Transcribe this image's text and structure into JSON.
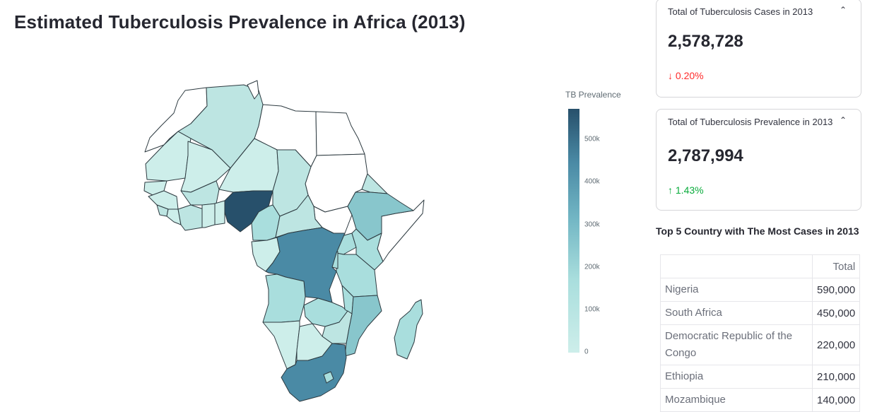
{
  "page": {
    "title": "Estimated Tuberculosis Prevalence in Africa (2013)"
  },
  "map": {
    "legend": {
      "title": "TB Prevalence",
      "ticks": [
        "0",
        "100k",
        "200k",
        "300k",
        "400k",
        "500k"
      ]
    },
    "colors": {
      "no_data": "#ffffff",
      "very_low": "#cdeeea",
      "low": "#bde5e2",
      "low_mid": "#a9dedd",
      "mid": "#88c6cc",
      "mid_high": "#5f9fb6",
      "high": "#4a8aa5",
      "max": "#27506b"
    }
  },
  "metrics": [
    {
      "label": "Total of Tuberculosis Cases in 2013",
      "value": "2,578,728",
      "delta": "0.20%",
      "direction": "down",
      "arrow": "↓"
    },
    {
      "label": "Total of Tuberculosis Prevalence in 2013",
      "value": "2,787,994",
      "delta": "1.43%",
      "direction": "up",
      "arrow": "↑"
    }
  ],
  "top5": {
    "title": "Top 5 Country with The Most Cases in 2013",
    "columns": [
      "",
      "Total"
    ],
    "rows": [
      {
        "country": "Nigeria",
        "total": "590,000"
      },
      {
        "country": "South Africa",
        "total": "450,000"
      },
      {
        "country": "Democratic Republic of the Congo",
        "total": "220,000"
      },
      {
        "country": "Ethiopia",
        "total": "210,000"
      },
      {
        "country": "Mozambique",
        "total": "140,000"
      }
    ]
  }
}
